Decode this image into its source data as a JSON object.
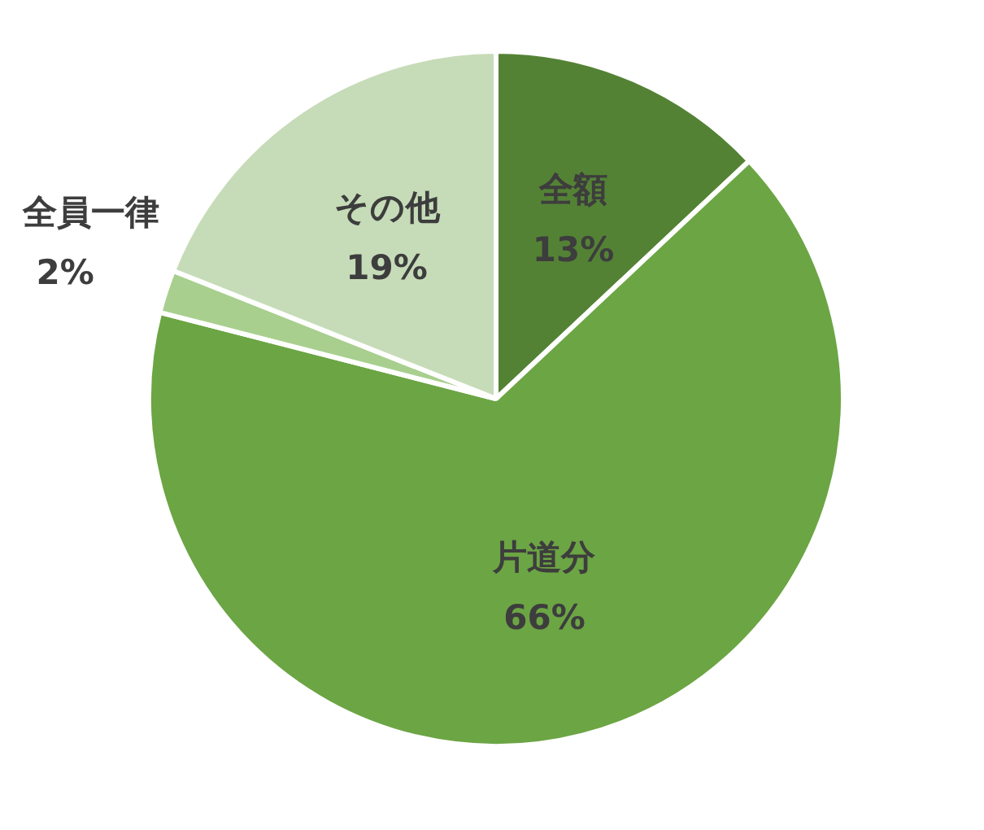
{
  "chart_data": {
    "type": "pie",
    "categories": [
      "全額",
      "片道分",
      "全員一律",
      "その他"
    ],
    "values": [
      13,
      66,
      2,
      19
    ],
    "value_labels": [
      "13%",
      "66%",
      "2%",
      "19%"
    ],
    "colors": [
      "#548235",
      "#6ca544",
      "#a8cf8e",
      "#c6dcb8"
    ]
  }
}
